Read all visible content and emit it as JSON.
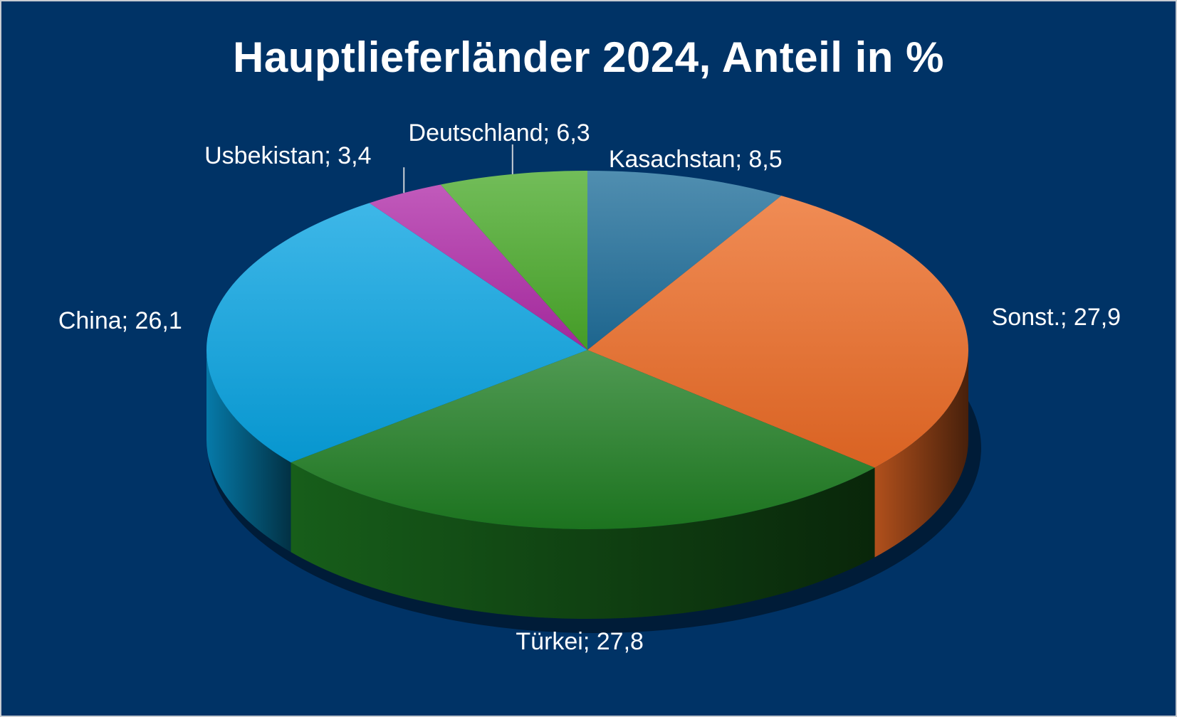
{
  "chart_data": {
    "type": "pie",
    "title": "Hauptlieferländer 2024, Anteil in %",
    "label_separator": "; ",
    "slices": [
      {
        "name": "Kasachstan",
        "value": 8.5,
        "label_value": "8,5",
        "color": "#1f6e9a"
      },
      {
        "name": "Sonst.",
        "value": 27.9,
        "label_value": "27,9",
        "color": "#ec6b25"
      },
      {
        "name": "Türkei",
        "value": 27.8,
        "label_value": "27,8",
        "color": "#1e7d22"
      },
      {
        "name": "China",
        "value": 26.1,
        "label_value": "26,1",
        "color": "#08a3e1"
      },
      {
        "name": "Usbekistan",
        "value": 3.4,
        "label_value": "3,4",
        "color": "#b02ca8"
      },
      {
        "name": "Deutschland",
        "value": 6.3,
        "label_value": "6,3",
        "color": "#4aaa2a"
      }
    ]
  },
  "style": {
    "background": "#003366",
    "text_color": "#ffffff"
  }
}
